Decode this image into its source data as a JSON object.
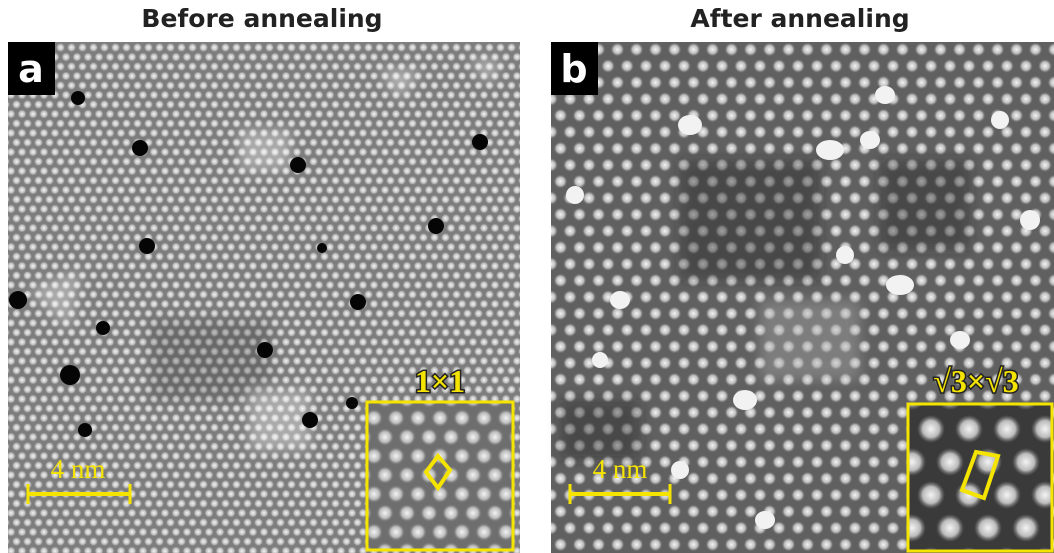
{
  "panels": [
    {
      "title": "Before annealing",
      "label": "a",
      "scale_bar": "4 nm",
      "inset_label": "1×1"
    },
    {
      "title": "After annealing",
      "label": "b",
      "scale_bar": "4 nm",
      "inset_label": "√3×√3"
    }
  ]
}
